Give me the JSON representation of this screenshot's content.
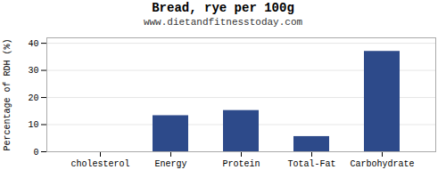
{
  "chart_data": {
    "type": "bar",
    "title": "Bread, rye per 100g",
    "subtitle": "www.dietandfitnesstoday.com",
    "categories": [
      "cholesterol",
      "Energy",
      "Protein",
      "Total-Fat",
      "Carbohydrate"
    ],
    "values": [
      0,
      13.3,
      15.2,
      5.6,
      37.0
    ],
    "color": "#2d4a8a",
    "ylabel": "Percentage of RDH (%)",
    "ylim": [
      0,
      42
    ],
    "yticks": [
      0,
      10,
      20,
      30,
      40
    ],
    "grid": true
  }
}
